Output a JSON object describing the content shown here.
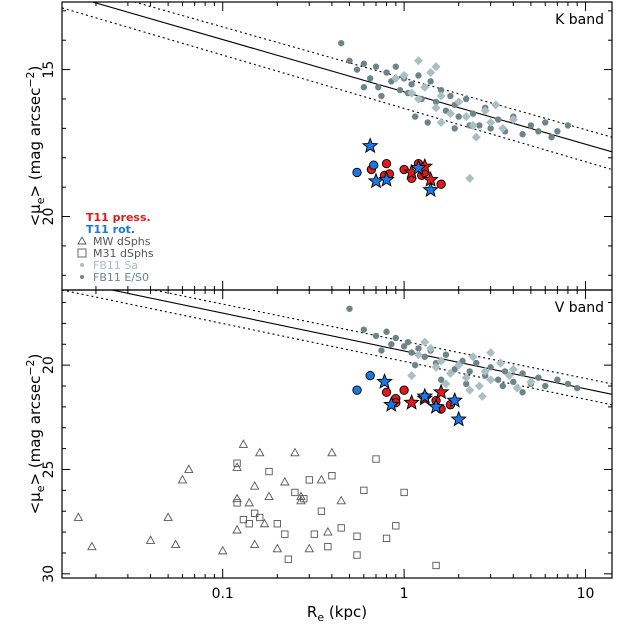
{
  "figure": {
    "xlabel": "R",
    "xlabel_sub": "e",
    "xlabel_unit": " (kpc)",
    "ylabel_prefix": "<μ",
    "ylabel_sub": "e",
    "ylabel_mid": "> (mag arcsec",
    "ylabel_sup": "−2",
    "ylabel_suffix": ")"
  },
  "legend": {
    "items": [
      {
        "label": "T11 press.",
        "color": "#e31a1c"
      },
      {
        "label": "T11 rot.",
        "color": "#1a78e6"
      },
      {
        "label": "MW dSphs",
        "color": "#555555"
      },
      {
        "label": "M31 dSphs",
        "color": "#555555"
      },
      {
        "label": "FB11 Sa",
        "color": "#a9bfc4"
      },
      {
        "label": "FB11 E/S0",
        "color": "#6d858a"
      }
    ]
  },
  "colors": {
    "t11_press": "#e31a1c",
    "t11_rot": "#1a78e6",
    "fb11_sa": "#a9bfc4",
    "fb11_es0": "#6d858a",
    "dsph": "#555555"
  },
  "chart_data": [
    {
      "type": "scatter",
      "panel": "K band",
      "title": "K band",
      "x_scale": "log",
      "xlim": [
        0.013,
        14
      ],
      "ylim": [
        22.5,
        12.7
      ],
      "y_inverted": true,
      "y_ticks": [
        15,
        20
      ],
      "fit_line": {
        "style": "solid",
        "points": [
          [
            0.013,
            12.4
          ],
          [
            14,
            17.8
          ]
        ]
      },
      "fit_upper": {
        "style": "dotted",
        "points": [
          [
            0.013,
            12.9
          ],
          [
            14,
            18.4
          ]
        ]
      },
      "fit_lower": {
        "style": "dotted",
        "points": [
          [
            0.013,
            12.0
          ],
          [
            14,
            17.3
          ]
        ]
      },
      "series": [
        {
          "name": "T11 press.",
          "marker": "circle",
          "color": "#e31a1c",
          "points": [
            [
              0.66,
              18.4
            ],
            [
              0.78,
              18.6
            ],
            [
              0.8,
              18.2
            ],
            [
              0.83,
              18.55
            ],
            [
              1.0,
              18.4
            ],
            [
              1.1,
              18.7
            ],
            [
              1.2,
              18.2
            ],
            [
              1.25,
              18.6
            ],
            [
              1.3,
              18.5
            ],
            [
              1.6,
              18.9
            ]
          ]
        },
        {
          "name": "T11 press.",
          "marker": "star",
          "color": "#e31a1c",
          "points": [
            [
              1.1,
              18.5
            ],
            [
              1.3,
              18.3
            ],
            [
              1.4,
              18.75
            ]
          ]
        },
        {
          "name": "T11 rot.",
          "marker": "circle",
          "color": "#1a78e6",
          "points": [
            [
              0.55,
              18.5
            ],
            [
              0.68,
              18.25
            ]
          ]
        },
        {
          "name": "T11 rot.",
          "marker": "star",
          "color": "#1a78e6",
          "points": [
            [
              0.65,
              17.6
            ],
            [
              0.7,
              18.8
            ],
            [
              0.8,
              18.75
            ],
            [
              1.2,
              18.35
            ],
            [
              1.4,
              19.1
            ]
          ]
        },
        {
          "name": "FB11 Sa",
          "marker": "diamond",
          "color": "#a9bfc4",
          "points": [
            [
              1.0,
              15.2
            ],
            [
              1.1,
              15.8
            ],
            [
              1.2,
              16.0
            ],
            [
              1.3,
              15.6
            ],
            [
              1.4,
              15.1
            ],
            [
              1.5,
              16.3
            ],
            [
              1.6,
              15.9
            ],
            [
              1.8,
              16.5
            ],
            [
              2.0,
              16.1
            ],
            [
              2.2,
              16.6
            ],
            [
              2.4,
              16.9
            ],
            [
              2.8,
              16.4
            ],
            [
              3.0,
              16.8
            ],
            [
              3.5,
              17.0
            ],
            [
              4.0,
              16.7
            ],
            [
              1.6,
              16.8
            ],
            [
              2.5,
              17.3
            ],
            [
              2.3,
              18.7
            ],
            [
              1.5,
              14.9
            ],
            [
              1.2,
              14.7
            ],
            [
              0.9,
              15.3
            ],
            [
              3.2,
              16.2
            ]
          ]
        },
        {
          "name": "FB11 E/S0",
          "marker": "dot",
          "color": "#6d858a",
          "points": [
            [
              0.45,
              14.1
            ],
            [
              0.5,
              14.7
            ],
            [
              0.55,
              15.0
            ],
            [
              0.6,
              14.8
            ],
            [
              0.65,
              15.3
            ],
            [
              0.7,
              14.9
            ],
            [
              0.72,
              15.6
            ],
            [
              0.8,
              15.1
            ],
            [
              0.85,
              15.4
            ],
            [
              0.9,
              14.9
            ],
            [
              0.95,
              15.7
            ],
            [
              1.0,
              15.3
            ],
            [
              1.05,
              15.8
            ],
            [
              1.1,
              15.5
            ],
            [
              1.2,
              15.2
            ],
            [
              1.25,
              16.0
            ],
            [
              1.3,
              15.6
            ],
            [
              1.4,
              15.4
            ],
            [
              1.5,
              16.1
            ],
            [
              1.6,
              15.7
            ],
            [
              1.7,
              16.4
            ],
            [
              1.8,
              15.9
            ],
            [
              1.9,
              16.2
            ],
            [
              2.0,
              16.6
            ],
            [
              2.2,
              16.0
            ],
            [
              2.4,
              16.5
            ],
            [
              2.6,
              16.9
            ],
            [
              2.8,
              16.3
            ],
            [
              3.0,
              17.0
            ],
            [
              3.3,
              16.7
            ],
            [
              3.6,
              17.1
            ],
            [
              4.0,
              16.6
            ],
            [
              4.5,
              17.2
            ],
            [
              5.0,
              16.9
            ],
            [
              5.5,
              17.1
            ],
            [
              6.0,
              16.8
            ],
            [
              6.5,
              17.3
            ],
            [
              7.0,
              17.1
            ],
            [
              8.0,
              16.9
            ],
            [
              1.15,
              16.6
            ],
            [
              1.35,
              16.8
            ],
            [
              0.75,
              15.9
            ],
            [
              0.6,
              15.6
            ],
            [
              1.9,
              17.0
            ],
            [
              2.3,
              16.9
            ]
          ]
        }
      ]
    },
    {
      "type": "scatter",
      "panel": "V band",
      "title": "V band",
      "x_scale": "log",
      "xlim": [
        0.013,
        14
      ],
      "ylim": [
        30.2,
        16.4
      ],
      "y_inverted": true,
      "y_ticks": [
        20,
        25,
        30
      ],
      "x_ticks": [
        0.1,
        1,
        10
      ],
      "x_tick_labels": [
        "0.1",
        "1",
        "10"
      ],
      "fit_line": {
        "style": "solid",
        "points": [
          [
            0.013,
            15.9
          ],
          [
            14,
            21.4
          ]
        ]
      },
      "fit_upper": {
        "style": "dotted",
        "points": [
          [
            0.013,
            15.5
          ],
          [
            14,
            20.9
          ]
        ]
      },
      "fit_lower": {
        "style": "dotted",
        "points": [
          [
            0.013,
            16.4
          ],
          [
            14,
            21.9
          ]
        ]
      },
      "series": [
        {
          "name": "T11 press.",
          "marker": "circle",
          "color": "#e31a1c",
          "points": [
            [
              0.8,
              21.3
            ],
            [
              0.9,
              21.6
            ],
            [
              1.0,
              21.2
            ],
            [
              1.3,
              21.5
            ],
            [
              1.5,
              21.7
            ],
            [
              1.6,
              22.1
            ],
            [
              1.8,
              21.9
            ],
            [
              0.9,
              21.8
            ]
          ]
        },
        {
          "name": "T11 press.",
          "marker": "star",
          "color": "#e31a1c",
          "points": [
            [
              1.3,
              21.6
            ],
            [
              1.6,
              21.3
            ],
            [
              1.1,
              21.8
            ]
          ]
        },
        {
          "name": "T11 rot.",
          "marker": "circle",
          "color": "#1a78e6",
          "points": [
            [
              0.55,
              21.2
            ],
            [
              0.65,
              20.5
            ]
          ]
        },
        {
          "name": "T11 rot.",
          "marker": "star",
          "color": "#1a78e6",
          "points": [
            [
              0.78,
              20.8
            ],
            [
              0.85,
              21.9
            ],
            [
              1.3,
              21.5
            ],
            [
              1.5,
              22.0
            ],
            [
              1.9,
              21.7
            ],
            [
              2.0,
              22.6
            ]
          ]
        },
        {
          "name": "FB11 Sa",
          "marker": "diamond",
          "color": "#a9bfc4",
          "points": [
            [
              1.2,
              19.5
            ],
            [
              1.3,
              18.9
            ],
            [
              1.4,
              19.2
            ],
            [
              1.5,
              20.1
            ],
            [
              1.6,
              19.8
            ],
            [
              1.8,
              20.4
            ],
            [
              2.0,
              20.0
            ],
            [
              2.2,
              20.6
            ],
            [
              2.4,
              19.6
            ],
            [
              2.6,
              21.0
            ],
            [
              2.8,
              20.3
            ],
            [
              3.0,
              20.7
            ],
            [
              3.4,
              19.9
            ],
            [
              3.8,
              20.5
            ],
            [
              4.2,
              21.1
            ],
            [
              5.0,
              20.8
            ],
            [
              1.1,
              20.5
            ],
            [
              1.7,
              20.9
            ],
            [
              2.3,
              21.2
            ],
            [
              2.7,
              21.5
            ],
            [
              4.0,
              20.2
            ],
            [
              3.0,
              19.4
            ]
          ]
        },
        {
          "name": "FB11 E/S0",
          "marker": "dot",
          "color": "#6d858a",
          "points": [
            [
              0.5,
              17.3
            ],
            [
              0.6,
              18.3
            ],
            [
              0.7,
              18.6
            ],
            [
              0.8,
              18.4
            ],
            [
              0.85,
              19.0
            ],
            [
              0.9,
              18.7
            ],
            [
              1.0,
              19.1
            ],
            [
              1.05,
              18.9
            ],
            [
              1.1,
              19.4
            ],
            [
              1.2,
              19.2
            ],
            [
              1.3,
              19.6
            ],
            [
              1.4,
              19.3
            ],
            [
              1.5,
              19.9
            ],
            [
              1.7,
              19.5
            ],
            [
              1.9,
              20.2
            ],
            [
              2.1,
              19.8
            ],
            [
              2.3,
              20.3
            ],
            [
              2.5,
              19.9
            ],
            [
              2.8,
              20.5
            ],
            [
              3.0,
              20.1
            ],
            [
              3.3,
              20.7
            ],
            [
              3.6,
              20.3
            ],
            [
              4.0,
              20.8
            ],
            [
              4.5,
              20.4
            ],
            [
              5.0,
              20.9
            ],
            [
              5.5,
              20.6
            ],
            [
              6.0,
              21.0
            ],
            [
              7.0,
              20.7
            ],
            [
              8.0,
              20.9
            ],
            [
              9.0,
              21.1
            ],
            [
              0.75,
              19.3
            ],
            [
              1.15,
              20.0
            ],
            [
              1.6,
              20.7
            ],
            [
              2.2,
              20.9
            ],
            [
              3.5,
              21.0
            ],
            [
              4.5,
              21.3
            ]
          ]
        },
        {
          "name": "MW dSphs",
          "marker": "triangle",
          "color": "#555555",
          "points": [
            [
              0.016,
              27.3
            ],
            [
              0.019,
              28.7
            ],
            [
              0.04,
              28.4
            ],
            [
              0.05,
              27.3
            ],
            [
              0.055,
              28.6
            ],
            [
              0.06,
              25.5
            ],
            [
              0.065,
              25.0
            ],
            [
              0.1,
              28.9
            ],
            [
              0.12,
              24.9
            ],
            [
              0.13,
              23.8
            ],
            [
              0.15,
              25.8
            ],
            [
              0.16,
              24.2
            ],
            [
              0.14,
              26.6
            ],
            [
              0.17,
              27.6
            ],
            [
              0.18,
              26.3
            ],
            [
              0.2,
              28.8
            ],
            [
              0.22,
              25.6
            ],
            [
              0.25,
              24.2
            ],
            [
              0.27,
              26.3
            ],
            [
              0.3,
              28.8
            ],
            [
              0.35,
              25.5
            ],
            [
              0.38,
              28.0
            ],
            [
              0.4,
              24.2
            ],
            [
              0.45,
              26.5
            ],
            [
              0.12,
              27.9
            ],
            [
              0.12,
              26.4
            ],
            [
              0.15,
              28.6
            ],
            [
              0.27,
              26.5
            ]
          ]
        },
        {
          "name": "M31 dSphs",
          "marker": "square",
          "color": "#555555",
          "points": [
            [
              0.12,
              24.7
            ],
            [
              0.12,
              26.6
            ],
            [
              0.13,
              27.4
            ],
            [
              0.14,
              27.6
            ],
            [
              0.15,
              27.1
            ],
            [
              0.16,
              27.3
            ],
            [
              0.18,
              25.1
            ],
            [
              0.22,
              28.1
            ],
            [
              0.23,
              29.3
            ],
            [
              0.25,
              26.1
            ],
            [
              0.28,
              26.4
            ],
            [
              0.3,
              25.5
            ],
            [
              0.35,
              27.0
            ],
            [
              0.38,
              28.7
            ],
            [
              0.4,
              25.3
            ],
            [
              0.45,
              27.8
            ],
            [
              0.55,
              28.2
            ],
            [
              0.55,
              29.1
            ],
            [
              0.6,
              26.0
            ],
            [
              0.7,
              24.5
            ],
            [
              0.8,
              28.3
            ],
            [
              0.9,
              27.7
            ],
            [
              1.0,
              26.1
            ],
            [
              1.5,
              29.6
            ],
            [
              0.2,
              27.6
            ],
            [
              0.32,
              28.1
            ]
          ]
        }
      ]
    }
  ]
}
